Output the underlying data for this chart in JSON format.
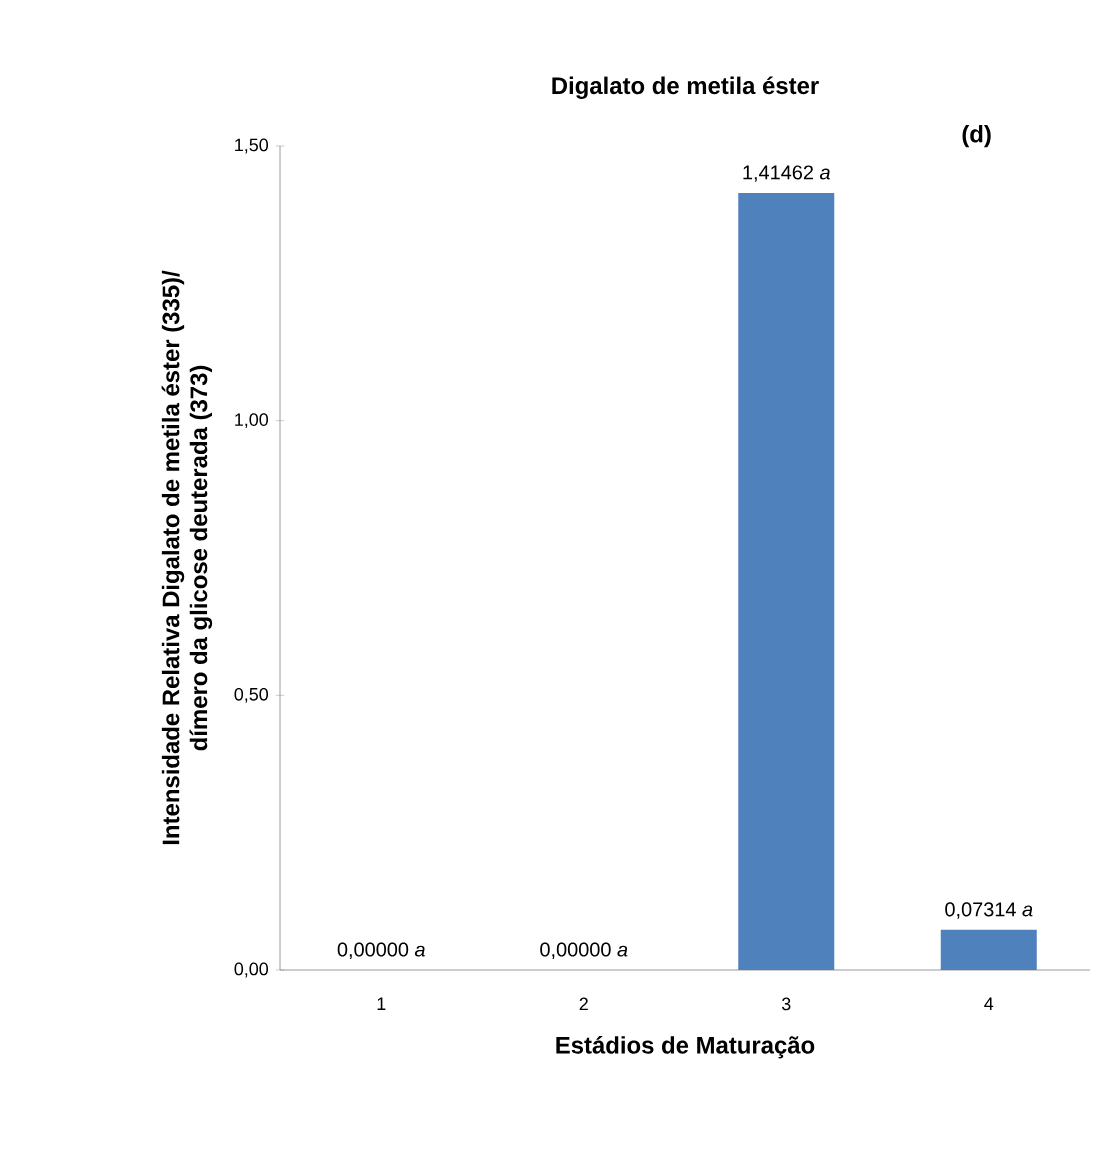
{
  "chart_data": {
    "type": "bar",
    "title": "Digalato de metila éster",
    "xlabel": "Estádios de Maturação",
    "ylabel": "Intensidade Relativa Digalato de metila éster (335)/ dímero da glicose deuterada (373)",
    "categories": [
      "1",
      "2",
      "3",
      "4"
    ],
    "values": [
      0,
      0,
      1.41462,
      0.07314
    ],
    "color": "#4f81bd",
    "value_labels": [
      "0,00000 *a*",
      "0,00000 *a*",
      "1,41462 *a*",
      "0,07314 *a*"
    ],
    "ylim": [
      0,
      1.5
    ],
    "yticks": [
      {
        "value": 0,
        "label": "0,00"
      },
      {
        "value": 0.5,
        "label": "0,50"
      },
      {
        "value": 1.0,
        "label": "1,00"
      },
      {
        "value": 1.5,
        "label": "1,50"
      }
    ],
    "annotations": [
      "(d)"
    ]
  }
}
